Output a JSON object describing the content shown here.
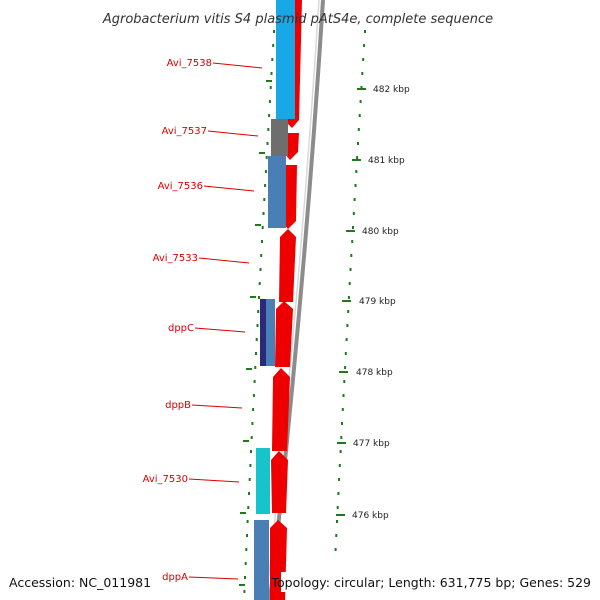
{
  "title": "Agrobacterium vitis S4 plasmid pAtS4e, complete sequence",
  "footer": {
    "accession": "Accession: NC_011981",
    "topology": "Topology: circular; Length: 631,775 bp; Genes: 529"
  },
  "colors": {
    "red_gene": "#ee0000",
    "sky_blue_gene": "#18a8e8",
    "steel_blue_gene": "#4a7fb5",
    "gray_gene": "#6e6e6e",
    "navy_gene": "#2a2a78",
    "cyan_gene": "#18c4cc",
    "backbone": "#8c8c8c",
    "tick": "#1f7a1f",
    "label_line": "#dd0000"
  },
  "ticks": [
    {
      "label": "482 kbp"
    },
    {
      "label": "481 kbp"
    },
    {
      "label": "480 kbp"
    },
    {
      "label": "479 kbp"
    },
    {
      "label": "478 kbp"
    },
    {
      "label": "477 kbp"
    },
    {
      "label": "476 kbp"
    }
  ],
  "gene_labels": [
    {
      "label": "Avi_7538"
    },
    {
      "label": "Avi_7537"
    },
    {
      "label": "Avi_7536"
    },
    {
      "label": "Avi_7533"
    },
    {
      "label": "dppC"
    },
    {
      "label": "dppB"
    },
    {
      "label": "Avi_7530"
    },
    {
      "label": "dppA"
    }
  ]
}
